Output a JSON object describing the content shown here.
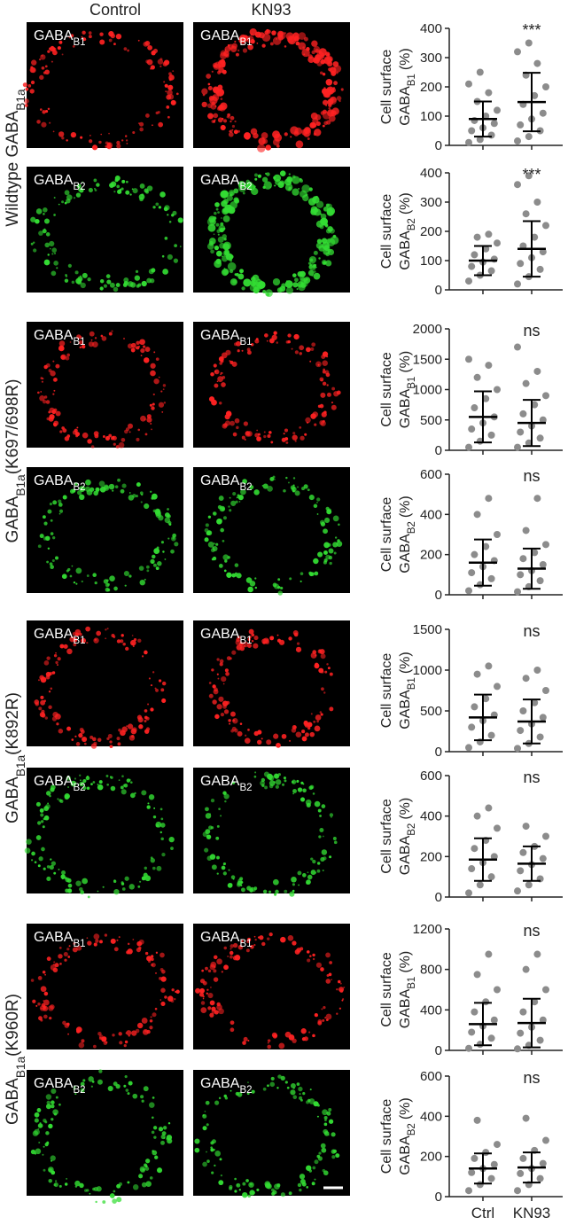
{
  "column_headers": [
    "Control",
    "KN93"
  ],
  "row_groups": [
    {
      "prefix": "Wildtype GABA",
      "sub": "B1a"
    },
    {
      "prefix": "GABA",
      "sub": "B1a",
      "suffix": "(K697/698R)"
    },
    {
      "prefix": "GABA",
      "sub": "B1a",
      "suffix": "(K892R)"
    },
    {
      "prefix": "GABA",
      "sub": "B1a",
      "suffix": "(K960R)"
    }
  ],
  "panel_labels": [
    {
      "text": "GABA",
      "sub": "B1",
      "color": "#ff2222"
    },
    {
      "text": "GABA",
      "sub": "B2",
      "color": "#33dd33"
    }
  ],
  "chart_data": [
    {
      "type": "scatter",
      "ylabel": {
        "line1": "Cell surface",
        "text": "GABA",
        "sub": "B1",
        "suffix": "(%)"
      },
      "annotation": "***",
      "categories": [
        null,
        null
      ],
      "ylim": [
        0,
        400
      ],
      "yticks": [
        0,
        100,
        200,
        300,
        400
      ],
      "series": [
        {
          "color": "#8c8c8c",
          "values": [
            10,
            20,
            35,
            50,
            60,
            75,
            85,
            100,
            120,
            150,
            180,
            210,
            250
          ],
          "mean": 90,
          "sd": 60
        },
        {
          "color": "#8c8c8c",
          "values": [
            15,
            30,
            50,
            70,
            90,
            110,
            140,
            170,
            200,
            240,
            280,
            320,
            350
          ],
          "mean": 148,
          "sd": 100
        }
      ]
    },
    {
      "type": "scatter",
      "ylabel": {
        "line1": "Cell surface",
        "text": "GABA",
        "sub": "B2",
        "suffix": "(%)"
      },
      "annotation": "***",
      "categories": [
        null,
        null
      ],
      "ylim": [
        0,
        400
      ],
      "yticks": [
        0,
        100,
        200,
        300,
        400
      ],
      "series": [
        {
          "color": "#8c8c8c",
          "values": [
            30,
            50,
            65,
            80,
            95,
            105,
            120,
            140,
            160,
            180,
            190
          ],
          "mean": 100,
          "sd": 50
        },
        {
          "color": "#8c8c8c",
          "values": [
            20,
            45,
            70,
            90,
            110,
            130,
            150,
            180,
            220,
            260,
            300,
            360,
            390
          ],
          "mean": 140,
          "sd": 95
        }
      ]
    },
    {
      "type": "scatter",
      "ylabel": {
        "line1": "Cell surface",
        "text": "GABA",
        "sub": "B1",
        "suffix": "(%)"
      },
      "annotation": "ns",
      "categories": [
        null,
        null
      ],
      "ylim": [
        0,
        2000
      ],
      "yticks": [
        0,
        500,
        1000,
        1500,
        2000
      ],
      "series": [
        {
          "color": "#8c8c8c",
          "values": [
            50,
            150,
            250,
            350,
            450,
            550,
            700,
            850,
            1000,
            1200,
            1400,
            1500
          ],
          "mean": 550,
          "sd": 420
        },
        {
          "color": "#8c8c8c",
          "values": [
            50,
            120,
            200,
            300,
            400,
            500,
            600,
            750,
            900,
            1100,
            1300,
            1700
          ],
          "mean": 450,
          "sd": 380
        }
      ]
    },
    {
      "type": "scatter",
      "ylabel": {
        "line1": "Cell surface",
        "text": "GABA",
        "sub": "B2",
        "suffix": "(%)"
      },
      "annotation": "ns",
      "categories": [
        null,
        null
      ],
      "ylim": [
        0,
        600
      ],
      "yticks": [
        0,
        200,
        400,
        600
      ],
      "series": [
        {
          "color": "#8c8c8c",
          "values": [
            20,
            50,
            80,
            110,
            140,
            170,
            200,
            240,
            300,
            400,
            480
          ],
          "mean": 160,
          "sd": 115
        },
        {
          "color": "#8c8c8c",
          "values": [
            15,
            40,
            70,
            100,
            120,
            150,
            180,
            210,
            250,
            320,
            480
          ],
          "mean": 130,
          "sd": 100
        }
      ]
    },
    {
      "type": "scatter",
      "ylabel": {
        "line1": "Cell surface",
        "text": "GABA",
        "sub": "B1",
        "suffix": "(%)"
      },
      "annotation": "ns",
      "categories": [
        null,
        null
      ],
      "ylim": [
        0,
        1500
      ],
      "yticks": [
        0,
        500,
        1000,
        1500
      ],
      "series": [
        {
          "color": "#8c8c8c",
          "values": [
            50,
            120,
            200,
            300,
            380,
            450,
            550,
            650,
            800,
            950,
            1050
          ],
          "mean": 420,
          "sd": 280
        },
        {
          "color": "#8c8c8c",
          "values": [
            40,
            100,
            180,
            260,
            340,
            420,
            500,
            600,
            750,
            900,
            1000
          ],
          "mean": 370,
          "sd": 270
        }
      ]
    },
    {
      "type": "scatter",
      "ylabel": {
        "line1": "Cell surface",
        "text": "GABA",
        "sub": "B2",
        "suffix": "(%)"
      },
      "annotation": "ns",
      "categories": [
        null,
        null
      ],
      "ylim": [
        0,
        600
      ],
      "yticks": [
        0,
        200,
        400,
        600
      ],
      "series": [
        {
          "color": "#8c8c8c",
          "values": [
            20,
            60,
            100,
            140,
            170,
            200,
            240,
            280,
            340,
            400,
            440
          ],
          "mean": 185,
          "sd": 105
        },
        {
          "color": "#8c8c8c",
          "values": [
            30,
            60,
            90,
            130,
            160,
            190,
            220,
            250,
            300,
            350
          ],
          "mean": 165,
          "sd": 85
        }
      ]
    },
    {
      "type": "scatter",
      "ylabel": {
        "line1": "Cell surface",
        "text": "GABA",
        "sub": "B1",
        "suffix": "(%)"
      },
      "annotation": "ns",
      "categories": [
        null,
        null
      ],
      "ylim": [
        0,
        1200
      ],
      "yticks": [
        0,
        400,
        800,
        1200
      ],
      "series": [
        {
          "color": "#8c8c8c",
          "values": [
            20,
            60,
            120,
            180,
            240,
            300,
            380,
            480,
            600,
            750,
            950
          ],
          "mean": 260,
          "sd": 210
        },
        {
          "color": "#8c8c8c",
          "values": [
            15,
            50,
            100,
            170,
            230,
            300,
            380,
            480,
            600,
            800,
            950
          ],
          "mean": 270,
          "sd": 240
        }
      ]
    },
    {
      "type": "scatter",
      "ylabel": {
        "line1": "Cell surface",
        "text": "GABA",
        "sub": "B2",
        "suffix": "(%)"
      },
      "annotation": "ns",
      "categories": [
        "Ctrl",
        "KN93"
      ],
      "ylim": [
        0,
        600
      ],
      "yticks": [
        0,
        200,
        400,
        600
      ],
      "series": [
        {
          "color": "#8c8c8c",
          "values": [
            30,
            60,
            90,
            120,
            140,
            160,
            190,
            220,
            260,
            380
          ],
          "mean": 140,
          "sd": 75
        },
        {
          "color": "#8c8c8c",
          "values": [
            30,
            60,
            90,
            115,
            140,
            165,
            190,
            230,
            280,
            390
          ],
          "mean": 145,
          "sd": 75
        }
      ]
    }
  ]
}
